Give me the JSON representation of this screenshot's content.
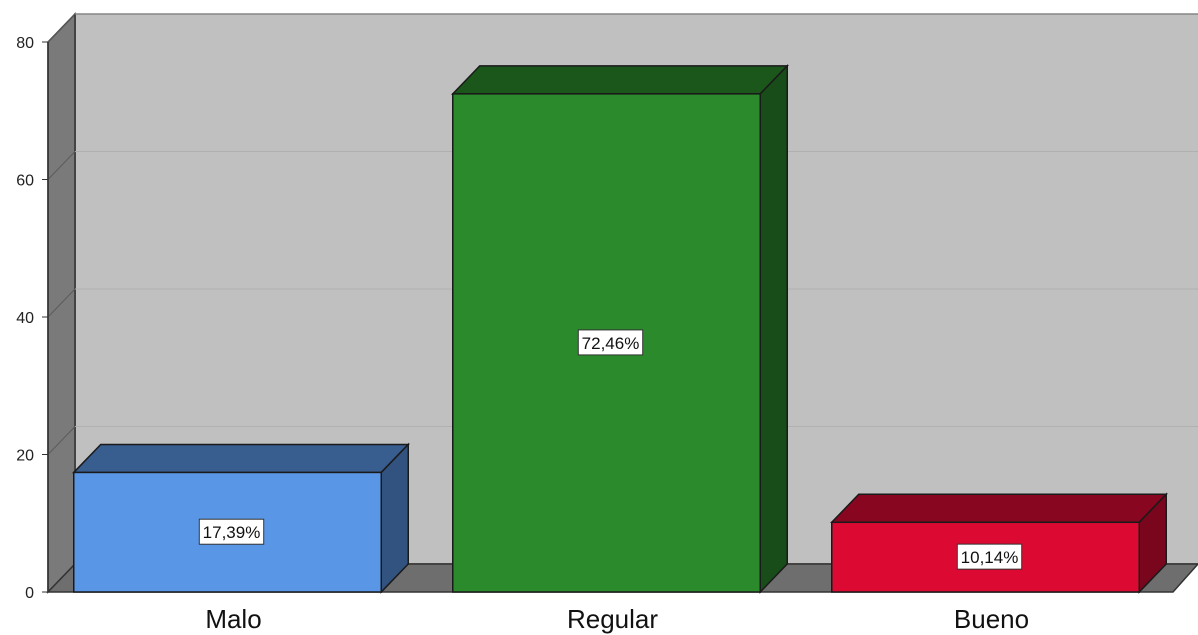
{
  "chart_data": {
    "type": "bar",
    "style": "3d",
    "title": "",
    "xlabel": "",
    "ylabel": "",
    "categories": [
      "Malo",
      "Regular",
      "Bueno"
    ],
    "values": [
      17.39,
      72.46,
      10.14
    ],
    "data_labels": [
      "17,39%",
      "72,46%",
      "10,14%"
    ],
    "colors": [
      "#5a96e6",
      "#2b8a2b",
      "#dc0a32"
    ],
    "ylim": [
      0,
      80
    ],
    "yticks": [
      0,
      20,
      40,
      60,
      80
    ],
    "grid": true,
    "legend": "none",
    "background": "#c0c0c0"
  }
}
